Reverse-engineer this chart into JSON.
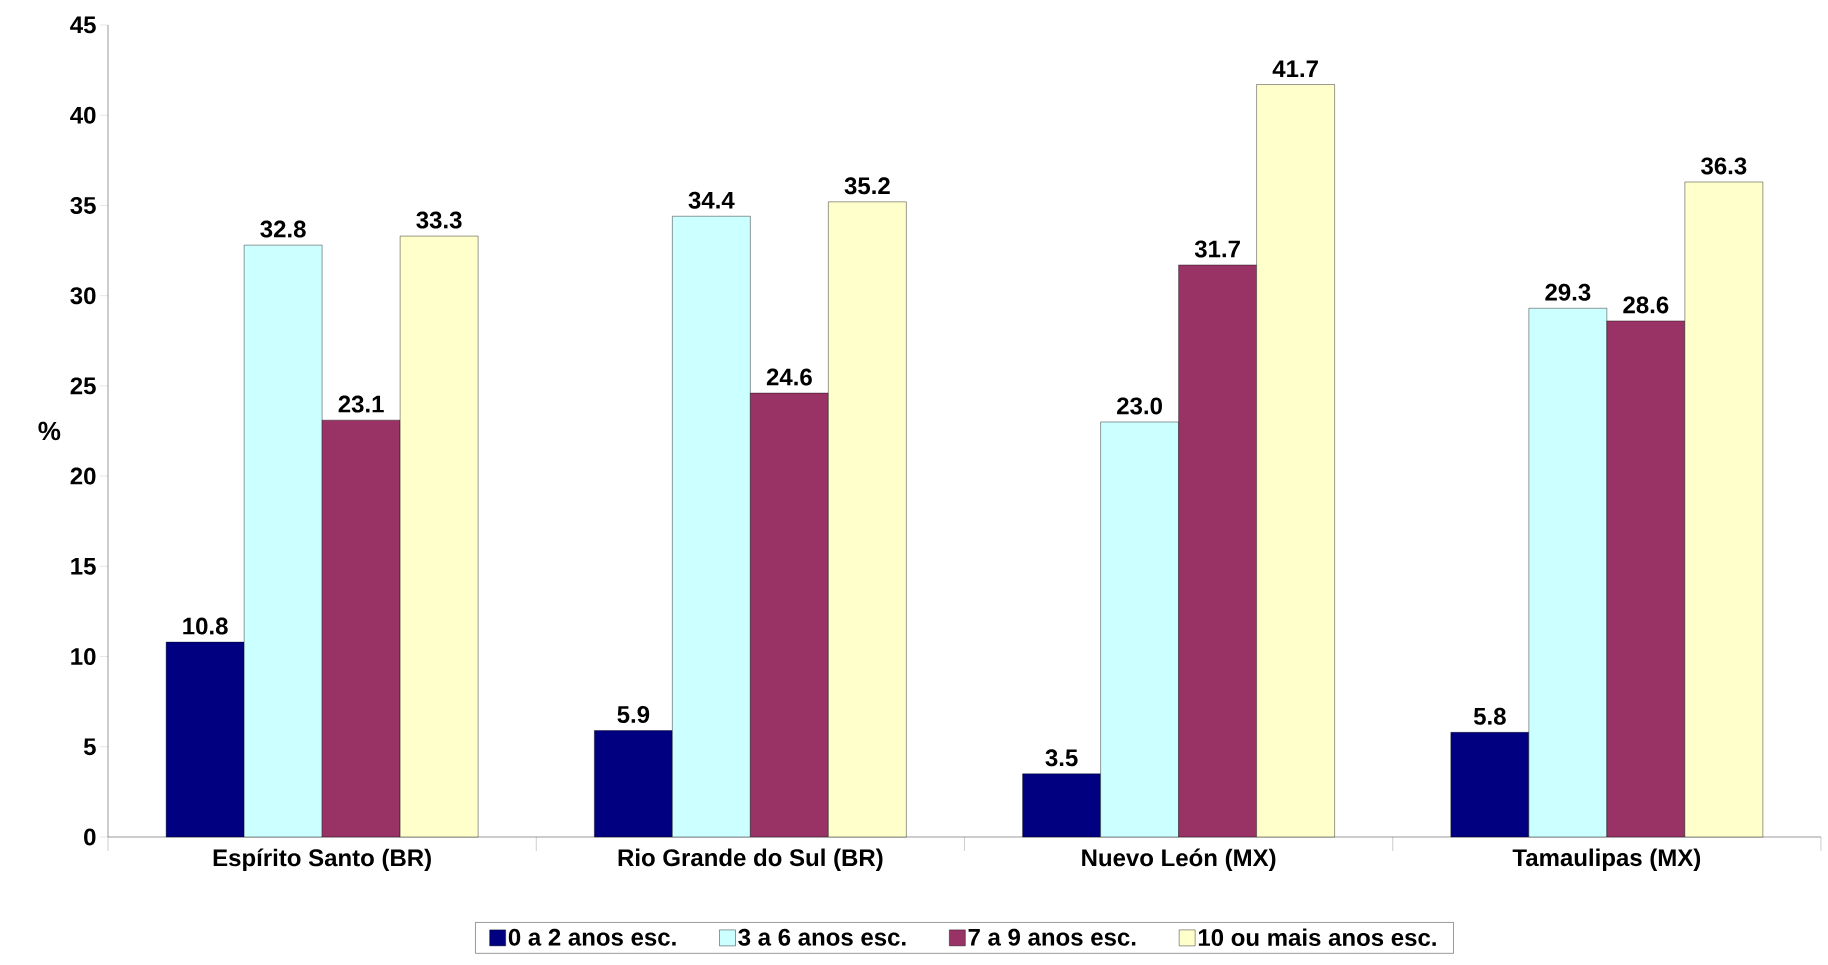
{
  "chart_data": {
    "type": "bar",
    "ylabel": "%",
    "categories": [
      "Espírito Santo (BR)",
      "Rio Grande do Sul (BR)",
      "Nuevo León (MX)",
      "Tamaulipas (MX)"
    ],
    "series": [
      {
        "name": "0 a 2 anos esc.",
        "color": "#000080",
        "values": [
          10.8,
          5.9,
          3.5,
          5.8
        ],
        "value_labels": [
          "10.8",
          "5.9",
          "3.5",
          "5.8"
        ]
      },
      {
        "name": "3 a 6 anos esc.",
        "color": "#ccffff",
        "values": [
          32.8,
          34.4,
          23.0,
          29.3
        ],
        "value_labels": [
          "32.8",
          "34.4",
          "23.0",
          "29.3"
        ]
      },
      {
        "name": "7 a 9 anos esc.",
        "color": "#993366",
        "values": [
          23.1,
          24.6,
          31.7,
          28.6
        ],
        "value_labels": [
          "23.1",
          "24.6",
          "31.7",
          "28.6"
        ]
      },
      {
        "name": "10 ou mais anos esc.",
        "color": "#ffffcc",
        "values": [
          33.3,
          35.2,
          41.7,
          36.3
        ],
        "value_labels": [
          "33.3",
          "35.2",
          "41.7",
          "36.3"
        ]
      }
    ],
    "ylim": [
      0,
      45
    ],
    "yticks": [
      0,
      5,
      10,
      15,
      20,
      25,
      30,
      35,
      40,
      45
    ],
    "grid": false,
    "legend": "bottom"
  }
}
